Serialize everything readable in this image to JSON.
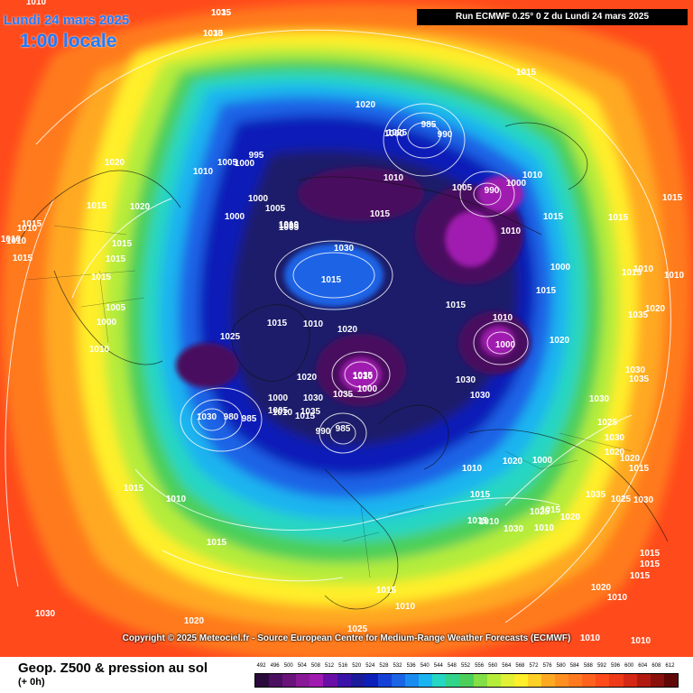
{
  "header": {
    "date": "Lundi 24 mars 2025",
    "time": "1:00 locale",
    "run": "Run ECMWF 0.25° 0 Z du Lundi 24 mars 2025"
  },
  "copyright": "Copyright © 2025 Meteociel.fr - Source European Centre for Medium-Range Weather Forecasts (ECMWF)",
  "footer": {
    "title": "Geop. Z500 & pression au sol",
    "subtitle": "(+ 0h)"
  },
  "colors": {
    "outer": "#ff4a1c",
    "ring_orange": "#ff7a1e",
    "ring_amber": "#ffa922",
    "ring_yellow": "#ffee2a",
    "ring_lime": "#b5ec3a",
    "ring_green": "#4ccf5a",
    "ring_teal": "#25d6c3",
    "ring_cyan": "#1ab4f0",
    "ring_blue": "#1b64e6",
    "ring_navy": "#0d1fb8",
    "ring_deep": "#1b1a6a",
    "core_purple": "#4a0f5e",
    "core_magenta": "#a01ab0",
    "isobar": "#ffffff"
  },
  "scale": {
    "labels": [
      "492",
      "496",
      "500",
      "504",
      "508",
      "512",
      "516",
      "520",
      "524",
      "528",
      "532",
      "536",
      "540",
      "544",
      "548",
      "552",
      "556",
      "560",
      "564",
      "568",
      "572",
      "576",
      "580",
      "584",
      "588",
      "592",
      "596",
      "600",
      "604",
      "608",
      "612"
    ],
    "colors": [
      "#2a0a3a",
      "#4a0f5e",
      "#6a137a",
      "#8a1998",
      "#a01ab0",
      "#6a0fa5",
      "#3a13a8",
      "#1b1a9a",
      "#0d1fb8",
      "#1540d8",
      "#1b64e6",
      "#1a8cf0",
      "#1ab4f0",
      "#25d6c3",
      "#30d48a",
      "#4ccf5a",
      "#84de45",
      "#b5ec3a",
      "#dff035",
      "#ffee2a",
      "#ffd026",
      "#ffa922",
      "#ff8f20",
      "#ff7a1e",
      "#ff621c",
      "#ff4a1c",
      "#ee3a18",
      "#d42814",
      "#b01a10",
      "#8a100c",
      "#600808"
    ]
  },
  "pressure_labels": [
    "1015",
    "1015",
    "1010",
    "1020",
    "1015",
    "1020",
    "1015",
    "1010",
    "1015",
    "1015",
    "1010",
    "1010",
    "1015",
    "1015",
    "1010",
    "1005",
    "1000",
    "1010",
    "1015",
    "1010",
    "1015",
    "1020",
    "1030",
    "1025",
    "1010",
    "1015",
    "1015",
    "1020",
    "1025",
    "1010",
    "1005",
    "995",
    "1005",
    "1000",
    "1000",
    "1000",
    "1005",
    "1010",
    "1005",
    "1020",
    "985",
    "990",
    "1000",
    "1005",
    "990",
    "1000",
    "1015",
    "1010",
    "1015",
    "1000",
    "1015",
    "1015",
    "1000",
    "1010",
    "1020",
    "1030",
    "1015",
    "1010",
    "1015",
    "1025",
    "1030",
    "1030",
    "1035",
    "1035",
    "1030",
    "1035",
    "1015",
    "1020",
    "1030",
    "980",
    "985",
    "1000",
    "1005",
    "1010",
    "1010",
    "985",
    "990",
    "1000",
    "1000",
    "1020",
    "1010",
    "1015",
    "1015",
    "1010",
    "1030",
    "1025",
    "1020",
    "1010",
    "1015",
    "1025",
    "1030",
    "1035",
    "1030",
    "1025",
    "1030",
    "1020",
    "1020",
    "1015",
    "1015",
    "1015",
    "1015",
    "1020",
    "1010",
    "1010",
    "1010",
    "1015",
    "1010",
    "1015",
    "1015",
    "1010",
    "1010",
    "1020",
    "1035",
    "1030",
    "1035",
    "1035",
    "1030"
  ]
}
